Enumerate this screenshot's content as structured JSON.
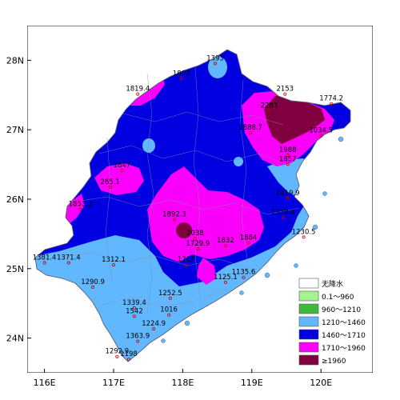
{
  "axes": {
    "lat_ticks": [
      {
        "label": "28N",
        "lat": 28
      },
      {
        "label": "27N",
        "lat": 27
      },
      {
        "label": "26N",
        "lat": 26
      },
      {
        "label": "25N",
        "lat": 25
      },
      {
        "label": "24N",
        "lat": 24
      }
    ],
    "lon_ticks": [
      {
        "label": "116E",
        "lon": 116
      },
      {
        "label": "117E",
        "lon": 117
      },
      {
        "label": "118E",
        "lon": 118
      },
      {
        "label": "119E",
        "lon": 119
      },
      {
        "label": "120E",
        "lon": 120
      }
    ],
    "lon_range": [
      115.75,
      120.75
    ],
    "lat_range": [
      23.5,
      28.5
    ]
  },
  "legend": {
    "items": [
      {
        "label": "无降水",
        "color": "#ffffff"
      },
      {
        "label": "0.1～960",
        "color": "#a6f28f"
      },
      {
        "label": "960～1210",
        "color": "#3dba3d"
      },
      {
        "label": "1210～1460",
        "color": "#61b8ff"
      },
      {
        "label": "1460～1710",
        "color": "#0000e1"
      },
      {
        "label": "1710～1960",
        "color": "#fa00fa"
      },
      {
        "label": "≥1960",
        "color": "#800040"
      }
    ]
  },
  "stations": [
    {
      "value": "1393",
      "lon": 118.47,
      "lat": 28.0
    },
    {
      "value": "1803",
      "lon": 117.98,
      "lat": 27.78
    },
    {
      "value": "1819.4",
      "lon": 117.35,
      "lat": 27.56
    },
    {
      "value": "2153",
      "lon": 119.48,
      "lat": 27.56
    },
    {
      "value": "1774.2",
      "lon": 120.15,
      "lat": 27.42
    },
    {
      "value": "2283",
      "lon": 119.25,
      "lat": 27.32
    },
    {
      "value": "1888.7",
      "lon": 118.98,
      "lat": 27.0
    },
    {
      "value": "1034.5",
      "lon": 120.0,
      "lat": 26.96
    },
    {
      "value": "1988",
      "lon": 119.52,
      "lat": 26.68
    },
    {
      "value": "1857",
      "lon": 119.52,
      "lat": 26.55
    },
    {
      "value": "1847",
      "lon": 117.12,
      "lat": 26.46
    },
    {
      "value": "265.1",
      "lon": 116.95,
      "lat": 26.22
    },
    {
      "value": "1419.9",
      "lon": 119.52,
      "lat": 26.06
    },
    {
      "value": "1853.3",
      "lon": 116.52,
      "lat": 25.9
    },
    {
      "value": "1892.3",
      "lon": 117.88,
      "lat": 25.75
    },
    {
      "value": "1378.4",
      "lon": 119.45,
      "lat": 25.78
    },
    {
      "value": "2038",
      "lon": 118.18,
      "lat": 25.48
    },
    {
      "value": "1230.5",
      "lon": 119.75,
      "lat": 25.5
    },
    {
      "value": "1884",
      "lon": 118.95,
      "lat": 25.42
    },
    {
      "value": "1832",
      "lon": 118.62,
      "lat": 25.38
    },
    {
      "value": "1729.9",
      "lon": 118.22,
      "lat": 25.33
    },
    {
      "value": "1381.4",
      "lon": 116.0,
      "lat": 25.13
    },
    {
      "value": "1371.4",
      "lon": 116.35,
      "lat": 25.13
    },
    {
      "value": "1312.1",
      "lon": 117.0,
      "lat": 25.1
    },
    {
      "value": "1717",
      "lon": 118.05,
      "lat": 25.1
    },
    {
      "value": "1135.6",
      "lon": 118.88,
      "lat": 24.92
    },
    {
      "value": "1125.1",
      "lon": 118.62,
      "lat": 24.85
    },
    {
      "value": "1290.9",
      "lon": 116.7,
      "lat": 24.78
    },
    {
      "value": "1252.5",
      "lon": 117.82,
      "lat": 24.62
    },
    {
      "value": "1339.4",
      "lon": 117.3,
      "lat": 24.48
    },
    {
      "value": "1542",
      "lon": 117.3,
      "lat": 24.36
    },
    {
      "value": "1016",
      "lon": 117.8,
      "lat": 24.38
    },
    {
      "value": "1224.9",
      "lon": 117.58,
      "lat": 24.18
    },
    {
      "value": "1363.9",
      "lon": 117.35,
      "lat": 24.0
    },
    {
      "value": "1292.9",
      "lon": 117.05,
      "lat": 23.78
    },
    {
      "value": "1198",
      "lon": 117.22,
      "lat": 23.74
    }
  ]
}
